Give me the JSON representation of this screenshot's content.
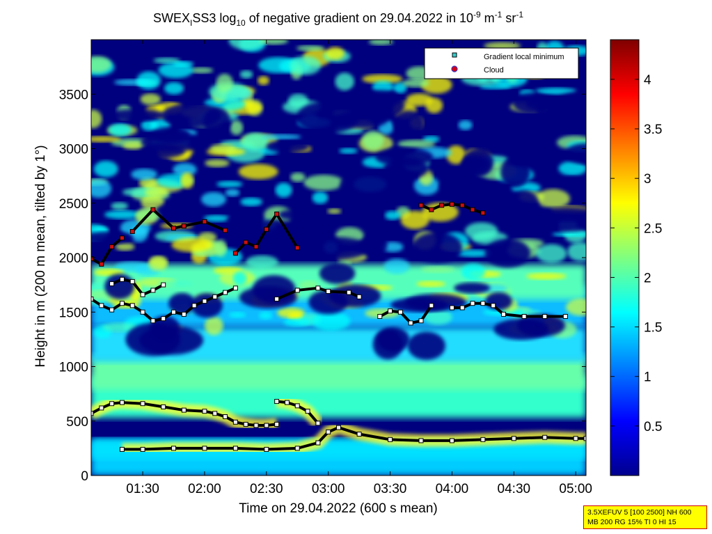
{
  "chart_data": {
    "type": "heatmap",
    "title_parts": {
      "a": "SWEX",
      "a_sub": "I",
      "b": "SS3 log",
      "b_sub": "10",
      "c": " of negative gradient on 29.04.2022 in 10",
      "c_sup": "-9",
      "d": " m",
      "d_sup": "-1",
      "e": " sr",
      "e_sup": "-1"
    },
    "xlabel": "Time on 29.04.2022 (600 s mean)",
    "ylabel": "Height in m (200 m mean, tilted by 1°)",
    "x_range": [
      "01:05",
      "05:05"
    ],
    "x_tick_values": [
      "01:30",
      "02:00",
      "02:30",
      "03:00",
      "03:30",
      "04:00",
      "04:30",
      "05:00"
    ],
    "y_range": [
      0,
      4000
    ],
    "y_tick_values": [
      0,
      500,
      1000,
      1500,
      2000,
      2500,
      3000,
      3500
    ],
    "colorbar": {
      "range": [
        0,
        4.4
      ],
      "ticks": [
        "0.5",
        "1",
        "1.5",
        "2",
        "2.5",
        "3",
        "3.5",
        "4"
      ],
      "colormap": "jet"
    },
    "legend": {
      "position": "top-right",
      "entries": [
        {
          "label": "Gradient local minimum",
          "marker": "square",
          "color": "#33cccc"
        },
        {
          "label": "Cloud",
          "marker": "circle",
          "color": "#dd0000",
          "edge": "#3333cc"
        }
      ]
    },
    "series": [
      {
        "x": [
          "01:05",
          "01:10",
          "01:15",
          "01:20",
          "01:30",
          "01:40",
          "01:50",
          "02:00",
          "02:05",
          "02:10",
          "02:15",
          "02:20",
          "02:25",
          "02:30",
          "02:35"
        ],
        "y": [
          570,
          620,
          660,
          670,
          660,
          630,
          600,
          590,
          570,
          540,
          490,
          470,
          460,
          460,
          470
        ]
      },
      {
        "x": [
          "02:35",
          "02:40",
          "02:45",
          "02:50",
          "02:55"
        ],
        "y": [
          680,
          670,
          640,
          590,
          480
        ]
      },
      {
        "x": [
          "01:20",
          "01:30",
          "01:45",
          "02:00",
          "02:15",
          "02:30",
          "02:45",
          "02:55",
          "03:00",
          "03:05",
          "03:15",
          "03:30",
          "03:45",
          "04:00",
          "04:15",
          "04:30",
          "04:45",
          "05:00",
          "05:05"
        ],
        "y": [
          240,
          240,
          250,
          250,
          250,
          240,
          250,
          300,
          400,
          440,
          380,
          330,
          320,
          320,
          330,
          340,
          350,
          340,
          340
        ]
      },
      {
        "x": [
          "01:05",
          "01:10",
          "01:15",
          "01:20",
          "01:25",
          "01:30",
          "01:35",
          "01:40",
          "01:45",
          "01:50",
          "01:55",
          "02:00",
          "02:05",
          "02:10",
          "02:15"
        ],
        "y": [
          1620,
          1560,
          1520,
          1580,
          1560,
          1500,
          1420,
          1440,
          1500,
          1480,
          1560,
          1600,
          1640,
          1680,
          1720
        ]
      },
      {
        "x": [
          "01:15",
          "01:20",
          "01:25",
          "01:30",
          "01:35",
          "01:40"
        ],
        "y": [
          1760,
          1800,
          1780,
          1660,
          1700,
          1750
        ]
      },
      {
        "x": [
          "02:35",
          "02:45",
          "02:55",
          "03:00",
          "03:10",
          "03:15"
        ],
        "y": [
          1620,
          1700,
          1720,
          1690,
          1680,
          1640
        ]
      },
      {
        "x": [
          "03:25",
          "03:30",
          "03:35",
          "03:40",
          "03:45",
          "03:50"
        ],
        "y": [
          1460,
          1510,
          1500,
          1400,
          1420,
          1560
        ]
      },
      {
        "x": [
          "04:00",
          "04:05",
          "04:10",
          "04:15",
          "04:20",
          "04:25",
          "04:35",
          "04:45",
          "04:55"
        ],
        "y": [
          1540,
          1540,
          1580,
          1580,
          1560,
          1480,
          1460,
          1460,
          1460
        ]
      },
      {
        "x": [
          "03:45",
          "03:50",
          "03:55",
          "04:00",
          "04:05",
          "04:10",
          "04:15"
        ],
        "y": [
          2480,
          2440,
          2480,
          2490,
          2480,
          2440,
          2410
        ]
      },
      {
        "x": [
          "01:25",
          "01:35",
          "01:45",
          "01:50",
          "02:00",
          "02:10"
        ],
        "y": [
          2240,
          2440,
          2270,
          2290,
          2330,
          2250
        ]
      },
      {
        "x": [
          "01:05",
          "01:10",
          "01:15",
          "01:20"
        ],
        "y": [
          1990,
          1940,
          2100,
          2180
        ]
      },
      {
        "x": [
          "02:15",
          "02:20",
          "02:25",
          "02:30",
          "02:35",
          "02:45"
        ],
        "y": [
          2040,
          2140,
          2100,
          2260,
          2400,
          2090
        ]
      }
    ]
  },
  "info_box": {
    "line1": "3.5XEFUV 5 [100 2500] NH 600",
    "line2": "MB 200 RG 15% TI 0 HI 15"
  }
}
